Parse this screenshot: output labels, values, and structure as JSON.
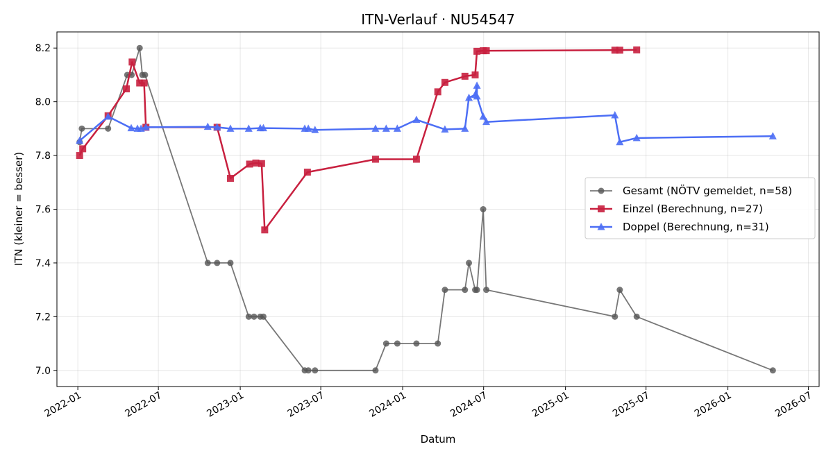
{
  "chart_data": {
    "type": "line",
    "title": "ITN-Verlauf · NU54547",
    "xlabel": "Datum",
    "ylabel": "ITN  (kleiner = besser)",
    "xlim": [
      "2021-11-15",
      "2026-07-25"
    ],
    "ylim": [
      6.94,
      8.26
    ],
    "grid": true,
    "legend_position": "right",
    "x_ticks": [
      "2022-01-01",
      "2022-07-01",
      "2023-01-01",
      "2023-07-01",
      "2024-01-01",
      "2024-07-01",
      "2025-01-01",
      "2025-07-01",
      "2026-01-01",
      "2026-07-01"
    ],
    "x_tick_labels": [
      "2022-01",
      "2022-07",
      "2023-01",
      "2023-07",
      "2024-01",
      "2024-07",
      "2025-01",
      "2025-07",
      "2026-01",
      "2026-07"
    ],
    "y_ticks": [
      7.0,
      7.2,
      7.4,
      7.6,
      7.8,
      8.0,
      8.2
    ],
    "y_tick_labels": [
      "7.0",
      "7.2",
      "7.4",
      "7.6",
      "7.8",
      "8.0",
      "8.2"
    ],
    "series": [
      {
        "name": "Gesamt (NÖTV gemeldet, n=58)",
        "color": "#555555",
        "marker": "circle",
        "points": [
          [
            "2022-01-05",
            7.85
          ],
          [
            "2022-01-10",
            7.9
          ],
          [
            "2022-03-10",
            7.9
          ],
          [
            "2022-04-22",
            8.1
          ],
          [
            "2022-05-02",
            8.1
          ],
          [
            "2022-05-20",
            8.2
          ],
          [
            "2022-05-26",
            8.1
          ],
          [
            "2022-06-01",
            8.1
          ],
          [
            "2022-10-20",
            7.4
          ],
          [
            "2022-11-10",
            7.4
          ],
          [
            "2022-12-10",
            7.4
          ],
          [
            "2023-01-20",
            7.2
          ],
          [
            "2023-02-01",
            7.2
          ],
          [
            "2023-02-15",
            7.2
          ],
          [
            "2023-02-22",
            7.2
          ],
          [
            "2023-05-26",
            7.0
          ],
          [
            "2023-06-03",
            7.0
          ],
          [
            "2023-06-18",
            7.0
          ],
          [
            "2023-11-01",
            7.0
          ],
          [
            "2023-11-25",
            7.1
          ],
          [
            "2023-12-20",
            7.1
          ],
          [
            "2024-02-01",
            7.1
          ],
          [
            "2024-03-20",
            7.1
          ],
          [
            "2024-04-05",
            7.3
          ],
          [
            "2024-05-20",
            7.3
          ],
          [
            "2024-05-29",
            7.4
          ],
          [
            "2024-06-12",
            7.3
          ],
          [
            "2024-06-16",
            7.3
          ],
          [
            "2024-06-30",
            7.6
          ],
          [
            "2024-07-07",
            7.3
          ],
          [
            "2025-04-22",
            7.2
          ],
          [
            "2025-05-03",
            7.3
          ],
          [
            "2025-06-10",
            7.2
          ],
          [
            "2026-04-12",
            7.0
          ]
        ]
      },
      {
        "name": "Einzel (Berechnung, n=27)",
        "color": "#c8203f",
        "marker": "square",
        "points": [
          [
            "2022-01-05",
            7.8
          ],
          [
            "2022-01-12",
            7.825
          ],
          [
            "2022-03-10",
            7.948
          ],
          [
            "2022-04-20",
            8.048
          ],
          [
            "2022-05-03",
            8.148
          ],
          [
            "2022-05-20",
            8.07
          ],
          [
            "2022-05-30",
            8.07
          ],
          [
            "2022-06-03",
            7.905
          ],
          [
            "2022-11-10",
            7.905
          ],
          [
            "2022-12-10",
            7.715
          ],
          [
            "2023-01-22",
            7.768
          ],
          [
            "2023-02-05",
            7.772
          ],
          [
            "2023-02-18",
            7.77
          ],
          [
            "2023-02-25",
            7.523
          ],
          [
            "2023-06-01",
            7.738
          ],
          [
            "2023-11-01",
            7.786
          ],
          [
            "2024-02-01",
            7.786
          ],
          [
            "2024-03-20",
            8.037
          ],
          [
            "2024-04-05",
            8.072
          ],
          [
            "2024-05-20",
            8.095
          ],
          [
            "2024-06-12",
            8.1
          ],
          [
            "2024-06-16",
            8.188
          ],
          [
            "2024-06-30",
            8.19
          ],
          [
            "2024-07-07",
            8.19
          ],
          [
            "2025-04-22",
            8.192
          ],
          [
            "2025-05-03",
            8.192
          ],
          [
            "2025-06-10",
            8.193
          ]
        ]
      },
      {
        "name": "Doppel (Berechnung, n=31)",
        "color": "#4c6ef5",
        "marker": "triangle",
        "points": [
          [
            "2022-01-05",
            7.855
          ],
          [
            "2022-03-10",
            7.945
          ],
          [
            "2022-05-01",
            7.902
          ],
          [
            "2022-05-15",
            7.9
          ],
          [
            "2022-05-23",
            7.9
          ],
          [
            "2022-06-03",
            7.905
          ],
          [
            "2022-10-20",
            7.907
          ],
          [
            "2022-11-10",
            7.905
          ],
          [
            "2022-12-10",
            7.9
          ],
          [
            "2023-01-20",
            7.9
          ],
          [
            "2023-02-15",
            7.902
          ],
          [
            "2023-02-22",
            7.902
          ],
          [
            "2023-05-26",
            7.9
          ],
          [
            "2023-06-03",
            7.9
          ],
          [
            "2023-06-18",
            7.895
          ],
          [
            "2023-11-01",
            7.9
          ],
          [
            "2023-11-25",
            7.9
          ],
          [
            "2023-12-20",
            7.9
          ],
          [
            "2024-02-01",
            7.933
          ],
          [
            "2024-04-05",
            7.897
          ],
          [
            "2024-05-20",
            7.9
          ],
          [
            "2024-05-29",
            8.015
          ],
          [
            "2024-06-12",
            8.026
          ],
          [
            "2024-06-16",
            8.06
          ],
          [
            "2024-06-16",
            8.02
          ],
          [
            "2024-06-30",
            7.945
          ],
          [
            "2024-07-07",
            7.925
          ],
          [
            "2025-04-22",
            7.95
          ],
          [
            "2025-05-03",
            7.85
          ],
          [
            "2025-06-10",
            7.865
          ],
          [
            "2026-04-12",
            7.872
          ]
        ]
      }
    ]
  }
}
